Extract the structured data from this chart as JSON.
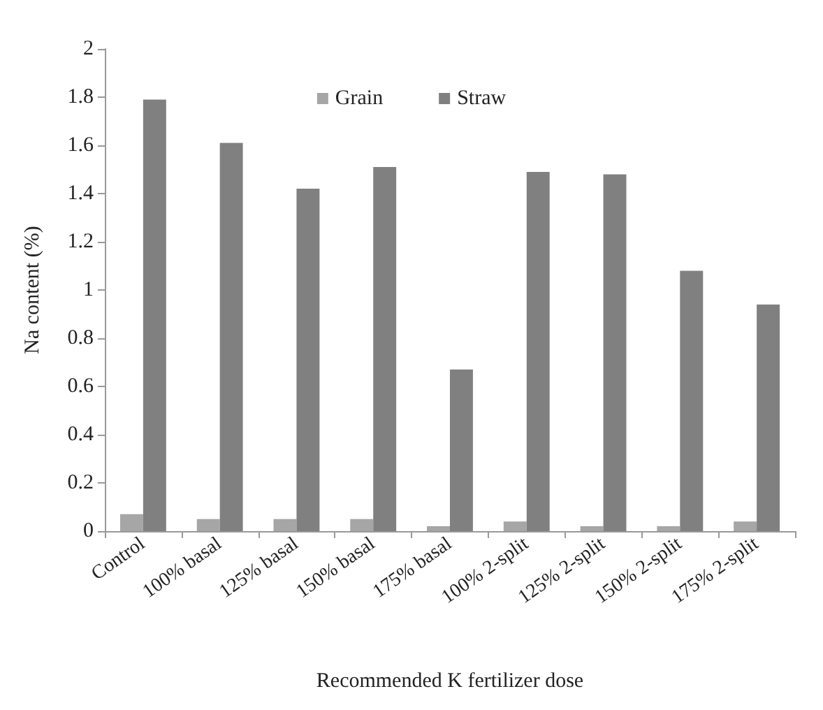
{
  "chart_data": {
    "type": "bar",
    "xlabel": "Recommended K fertilizer dose",
    "ylabel": "Na content (%)",
    "categories": [
      "Control",
      "100% basal",
      "125% basal",
      "150% basal",
      "175% basal",
      "100% 2-split",
      "125% 2-split",
      "150% 2-split",
      "175% 2-split"
    ],
    "series": [
      {
        "name": "Grain",
        "color": "#a6a6a6",
        "values": [
          0.07,
          0.05,
          0.05,
          0.05,
          0.02,
          0.04,
          0.02,
          0.02,
          0.04
        ]
      },
      {
        "name": "Straw",
        "color": "#808080",
        "values": [
          1.79,
          1.61,
          1.42,
          1.51,
          0.67,
          1.49,
          1.48,
          1.08,
          0.94
        ]
      }
    ],
    "ylim": [
      0,
      2
    ],
    "yticks": [
      0,
      0.2,
      0.4,
      0.6,
      0.8,
      1,
      1.2,
      1.4,
      1.6,
      1.8,
      2
    ],
    "grid": false,
    "legend": "top"
  }
}
